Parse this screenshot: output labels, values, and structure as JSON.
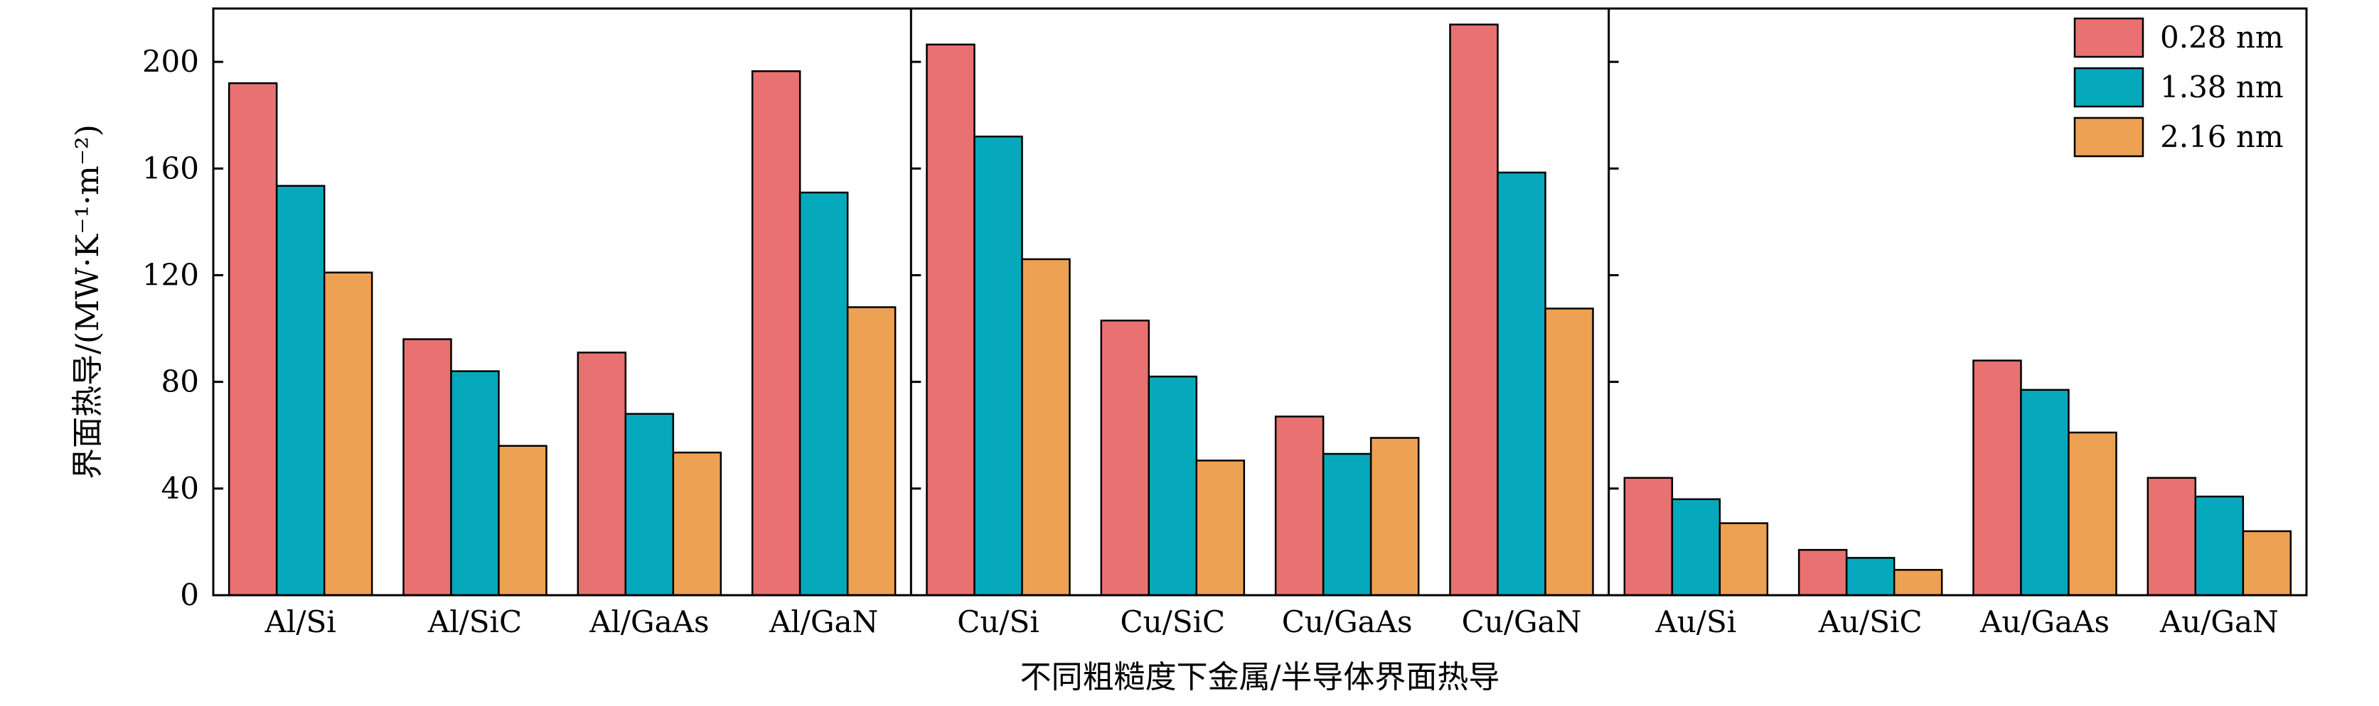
{
  "chart_data": {
    "type": "bar",
    "xlabel": "不同粗糙度下金属/半导体界面热导",
    "ylabel": "界面热导/(MW·K⁻¹·m⁻²)",
    "ylim": [
      0,
      220
    ],
    "yticks": [
      0,
      40,
      80,
      120,
      160,
      200
    ],
    "legend_position": "top-right",
    "grid": false,
    "groups_separated_after": [
      "Al/GaN",
      "Cu/GaN"
    ],
    "categories": [
      "Al/Si",
      "Al/SiC",
      "Al/GaAs",
      "Al/GaN",
      "Cu/Si",
      "Cu/SiC",
      "Cu/GaAs",
      "Cu/GaN",
      "Au/Si",
      "Au/SiC",
      "Au/GaAs",
      "Au/GaN"
    ],
    "series": [
      {
        "name": "0.28 nm",
        "color": "#E97171",
        "values": [
          192,
          96,
          91,
          196.5,
          206.5,
          103,
          67,
          214,
          44,
          17,
          88,
          44
        ]
      },
      {
        "name": "1.38 nm",
        "color": "#06A9BB",
        "values": [
          153.5,
          84,
          68,
          151,
          172,
          82,
          53,
          158.5,
          36,
          14,
          77,
          37
        ]
      },
      {
        "name": "2.16 nm",
        "color": "#EDA153",
        "values": [
          121,
          56,
          53.5,
          108,
          126,
          50.5,
          59,
          107.5,
          27,
          9.5,
          61,
          24
        ]
      }
    ]
  }
}
